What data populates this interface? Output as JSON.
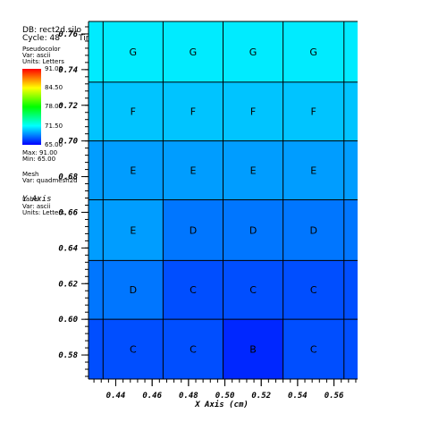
{
  "header": {
    "db": "DB: rect2d.silo",
    "cycle": "Cycle: 48",
    "time": "Time:4.8"
  },
  "legend": {
    "plot_type": "Pseudocolor",
    "var": "Var: ascii",
    "units": "Units: Letters",
    "tick_labels": [
      "91.00",
      "84.50",
      "78.00",
      "71.50",
      "65.00"
    ],
    "max": "Max: 91.00",
    "min": "Min: 65.00",
    "mesh_title": "Mesh",
    "mesh_var": "Var: quadmesh2d",
    "label_title": "Label",
    "label_var": "Var: ascii",
    "label_units": "Units: Letters",
    "colors": [
      "#ff0000",
      "#ffff00",
      "#00ff00",
      "#00ffff",
      "#0000ff"
    ]
  },
  "chart_data": {
    "type": "heatmap",
    "xlabel": "X Axis (cm)",
    "ylabel": "Y Axis",
    "xlim": [
      0.425,
      0.573
    ],
    "ylim": [
      0.5665,
      0.767
    ],
    "x_ticks": [
      "0.44",
      "0.46",
      "0.48",
      "0.50",
      "0.52",
      "0.54",
      "0.56"
    ],
    "y_ticks": [
      "0.58",
      "0.60",
      "0.62",
      "0.64",
      "0.66",
      "0.68",
      "0.70",
      "0.72",
      "0.74",
      "0.76"
    ],
    "x_edges": [
      0.433,
      0.466,
      0.499,
      0.532,
      0.5655
    ],
    "y_edges": [
      0.5665,
      0.6,
      0.633,
      0.667,
      0.7,
      0.733,
      0.767
    ],
    "value_range": [
      65,
      91
    ],
    "rows": [
      {
        "labels": [
          "C",
          "C",
          "B",
          "C"
        ],
        "values": [
          67,
          67,
          66,
          67
        ]
      },
      {
        "labels": [
          "D",
          "C",
          "C",
          "C"
        ],
        "values": [
          68,
          67,
          67,
          67
        ]
      },
      {
        "labels": [
          "E",
          "D",
          "D",
          "D"
        ],
        "values": [
          69,
          68,
          68,
          68
        ]
      },
      {
        "labels": [
          "E",
          "E",
          "E",
          "E"
        ],
        "values": [
          69,
          69,
          69,
          69
        ]
      },
      {
        "labels": [
          "F",
          "F",
          "F",
          "F"
        ],
        "values": [
          70,
          70,
          70,
          70
        ]
      },
      {
        "labels": [
          "G",
          "G",
          "G",
          "G"
        ],
        "values": [
          71,
          71,
          71,
          71
        ]
      }
    ],
    "grid": true
  }
}
